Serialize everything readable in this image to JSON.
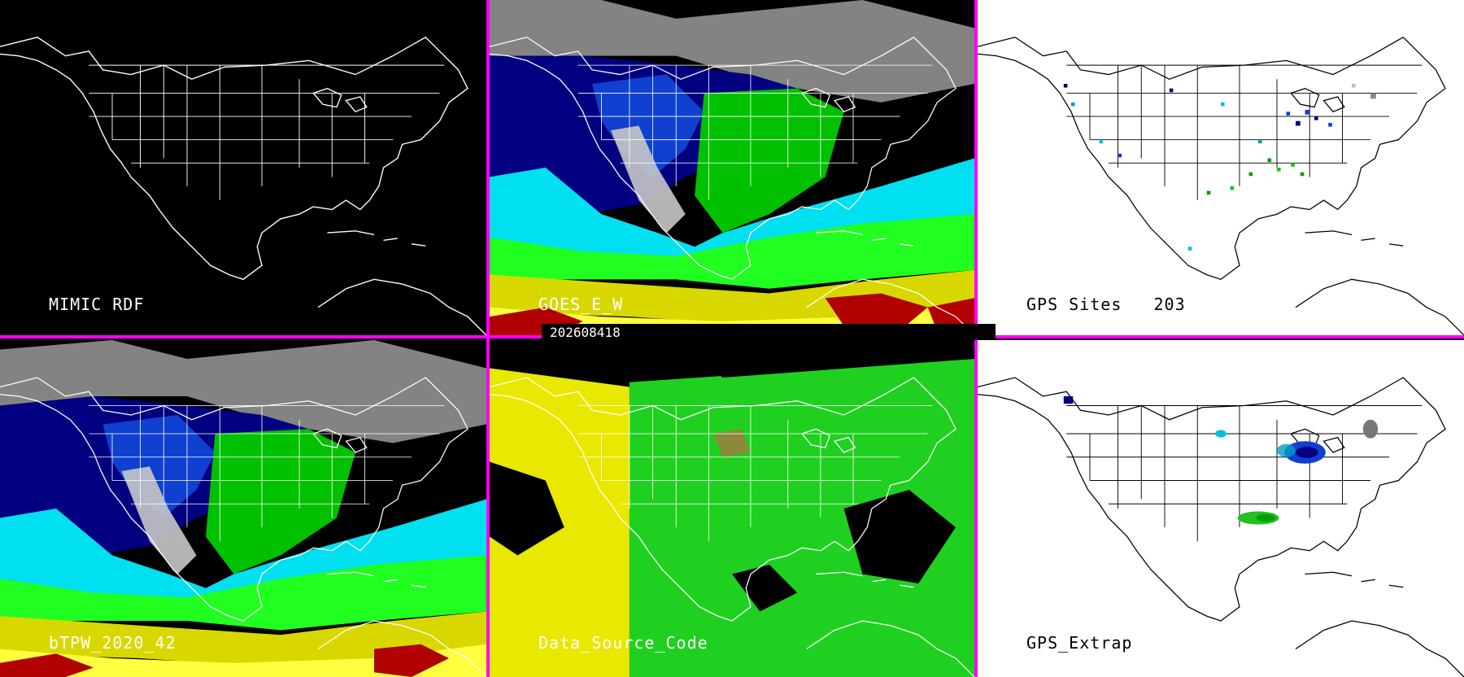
{
  "timestamp": "202608418",
  "panels": [
    {
      "id": "p1",
      "label": "MIMIC RDF",
      "theme": "dark",
      "product": "blank"
    },
    {
      "id": "p2",
      "label": "GOES_E_W",
      "theme": "dark",
      "product": "tpw"
    },
    {
      "id": "p3",
      "label": "GPS Sites   203",
      "theme": "light",
      "product": "gps-sites"
    },
    {
      "id": "p4",
      "label": "bTPW_2020_42",
      "theme": "dark",
      "product": "tpw"
    },
    {
      "id": "p5",
      "label": "Data_Source_Code",
      "theme": "dark",
      "product": "source"
    },
    {
      "id": "p6",
      "label": "GPS_Extrap",
      "theme": "light",
      "product": "gps-extrap"
    }
  ],
  "colors": {
    "divider": "#ff00ff",
    "tpw_scale": [
      "#c8c8c8",
      "#000080",
      "#1040d0",
      "#00e0f0",
      "#00c000",
      "#20ff20",
      "#d8d800",
      "#ffff40",
      "#b00000"
    ],
    "source_codes": [
      "#e8e800",
      "#20d020",
      "#8a8a3a"
    ]
  }
}
